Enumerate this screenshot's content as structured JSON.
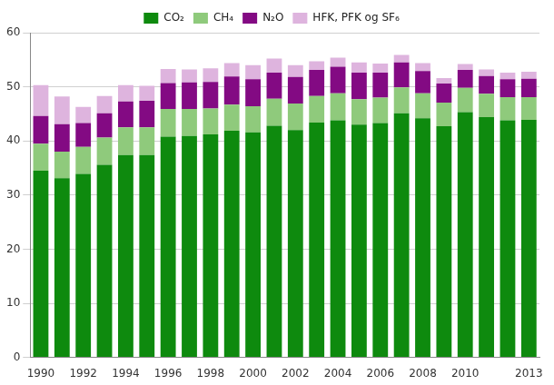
{
  "chart_data": {
    "type": "bar",
    "stacked": true,
    "grid": true,
    "legend": "top",
    "categories": [
      "1990",
      null,
      "1992",
      null,
      "1994",
      null,
      "1996",
      null,
      "1998",
      null,
      "2000",
      null,
      "2002",
      null,
      "2004",
      null,
      "2006",
      null,
      "2008",
      null,
      "2010",
      null,
      null,
      "2013"
    ],
    "ylim": [
      0,
      60
    ],
    "yticks": [
      0,
      10,
      20,
      30,
      40,
      50,
      60
    ],
    "series": [
      {
        "name": "CO₂",
        "color": "#0e8a0e",
        "values": [
          34.5,
          33.1,
          33.9,
          35.6,
          37.4,
          37.4,
          40.8,
          40.9,
          41.2,
          41.9,
          41.6,
          42.8,
          42.0,
          43.4,
          43.8,
          43.0,
          43.3,
          45.1,
          44.2,
          42.7,
          45.3,
          44.4,
          43.8,
          43.9
        ]
      },
      {
        "name": "CH₄",
        "color": "#8fca7c",
        "values": [
          5.0,
          4.9,
          5.0,
          5.0,
          5.1,
          5.1,
          5.1,
          5.0,
          4.8,
          4.8,
          4.8,
          5.0,
          4.9,
          4.9,
          5.0,
          4.7,
          4.7,
          4.8,
          4.6,
          4.4,
          4.5,
          4.3,
          4.3,
          4.2
        ]
      },
      {
        "name": "N₂O",
        "color": "#830a83",
        "values": [
          5.1,
          5.1,
          4.4,
          4.5,
          4.8,
          4.9,
          4.8,
          4.9,
          4.9,
          5.2,
          5.0,
          4.8,
          4.9,
          4.8,
          4.9,
          4.9,
          4.6,
          4.6,
          4.1,
          3.5,
          3.3,
          3.3,
          3.3,
          3.4
        ]
      },
      {
        "name": "HFK, PFK og SF₆",
        "color": "#deb4de",
        "values": [
          5.7,
          5.1,
          3.0,
          3.2,
          3.0,
          2.8,
          2.6,
          2.4,
          2.5,
          2.5,
          2.6,
          2.6,
          2.2,
          1.6,
          1.7,
          1.9,
          1.7,
          1.4,
          1.5,
          1.0,
          1.1,
          1.2,
          1.2,
          1.3
        ]
      }
    ]
  }
}
